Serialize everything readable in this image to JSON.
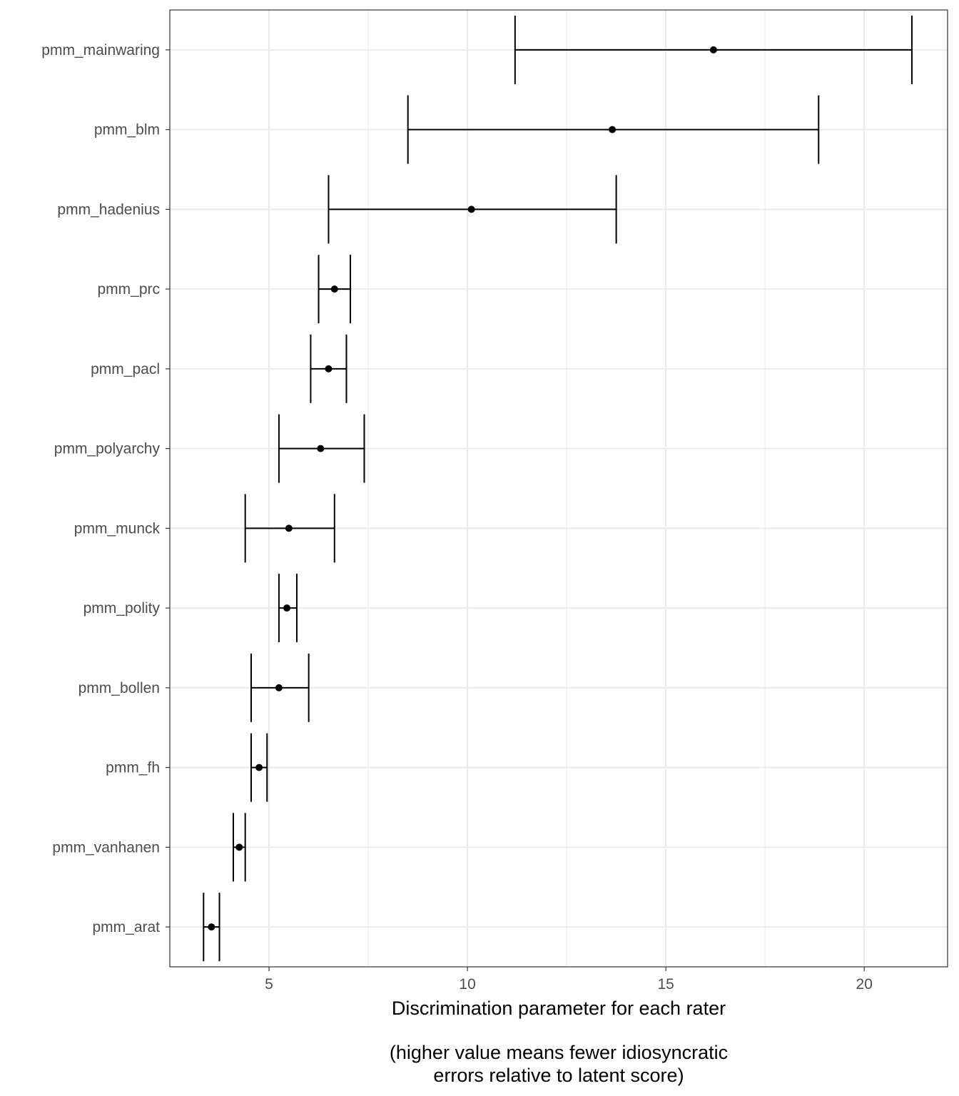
{
  "chart_data": {
    "type": "errorbar",
    "orientation": "horizontal",
    "xlabel_lines": [
      "Discrimination parameter for each rater",
      "",
      "(higher value means fewer idiosyncratic",
      "errors relative to latent score)"
    ],
    "ylabel": "",
    "xlim": [
      2.5,
      22.1
    ],
    "xticks": [
      5,
      10,
      15,
      20
    ],
    "grid": true,
    "legend": "none",
    "raters": [
      {
        "label": "pmm_mainwaring",
        "estimate": 16.2,
        "lower": 11.2,
        "upper": 21.2
      },
      {
        "label": "pmm_blm",
        "estimate": 13.65,
        "lower": 8.5,
        "upper": 18.85
      },
      {
        "label": "pmm_hadenius",
        "estimate": 10.1,
        "lower": 6.5,
        "upper": 13.75
      },
      {
        "label": "pmm_prc",
        "estimate": 6.65,
        "lower": 6.25,
        "upper": 7.05
      },
      {
        "label": "pmm_pacl",
        "estimate": 6.5,
        "lower": 6.05,
        "upper": 6.95
      },
      {
        "label": "pmm_polyarchy",
        "estimate": 6.3,
        "lower": 5.25,
        "upper": 7.4
      },
      {
        "label": "pmm_munck",
        "estimate": 5.5,
        "lower": 4.4,
        "upper": 6.65
      },
      {
        "label": "pmm_polity",
        "estimate": 5.45,
        "lower": 5.25,
        "upper": 5.7
      },
      {
        "label": "pmm_bollen",
        "estimate": 5.25,
        "lower": 4.55,
        "upper": 6.0
      },
      {
        "label": "pmm_fh",
        "estimate": 4.75,
        "lower": 4.55,
        "upper": 4.95
      },
      {
        "label": "pmm_vanhanen",
        "estimate": 4.25,
        "lower": 4.1,
        "upper": 4.4
      },
      {
        "label": "pmm_arat",
        "estimate": 3.55,
        "lower": 3.35,
        "upper": 3.75
      }
    ]
  }
}
